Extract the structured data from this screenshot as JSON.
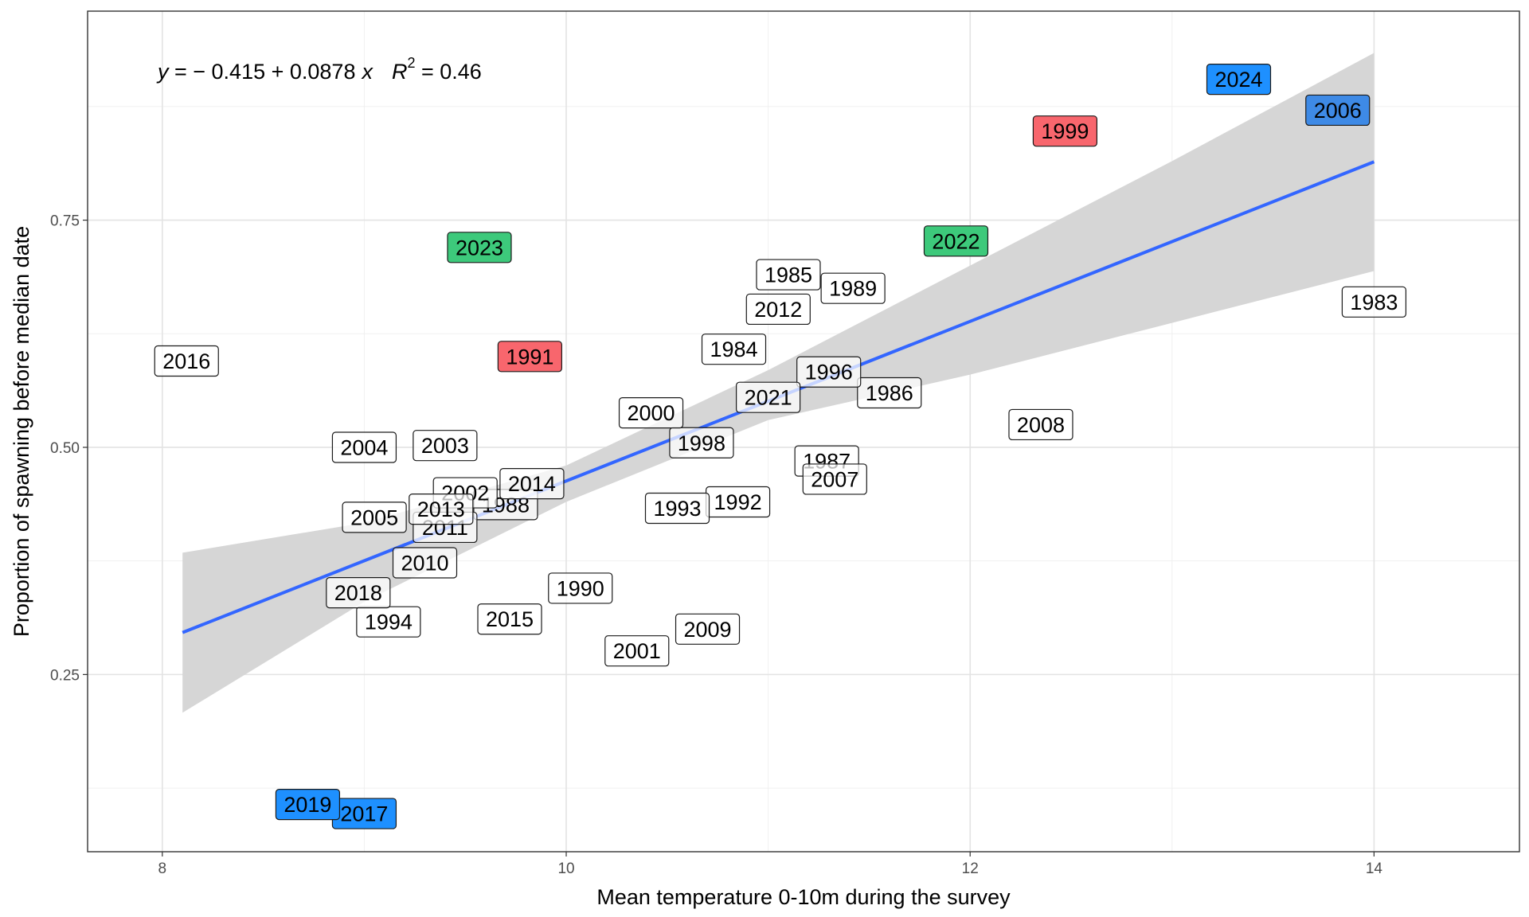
{
  "chart_data": {
    "type": "scatter",
    "xlabel": "Mean temperature 0-10m during the survey",
    "ylabel": "Proportion of spawning before median date",
    "xlim": [
      7.63,
      14.72
    ],
    "ylim": [
      0.055,
      0.98
    ],
    "x_ticks": [
      8,
      10,
      12,
      14
    ],
    "x_tick_labels": [
      "8",
      "10",
      "12",
      "14"
    ],
    "y_ticks": [
      0.25,
      0.5,
      0.75
    ],
    "y_tick_labels": [
      "0.25",
      "0.50",
      "0.75"
    ],
    "grid": true,
    "annotation": {
      "y": "y",
      "eq_main": " = − 0.415 + 0.0878",
      "x": "x",
      "r": "R",
      "sup": "2",
      "r2_value": " = 0.46"
    },
    "fit": {
      "intercept": -0.415,
      "slope": 0.0878,
      "x_range": [
        8.1,
        14.0
      ],
      "color": "#3366ff",
      "band_color": "#d6d6d6",
      "band": [
        {
          "x": 8.1,
          "lo": 0.208,
          "hi": 0.384
        },
        {
          "x": 9.0,
          "lo": 0.33,
          "hi": 0.417
        },
        {
          "x": 10.0,
          "lo": 0.44,
          "hi": 0.48
        },
        {
          "x": 11.0,
          "lo": 0.53,
          "hi": 0.585
        },
        {
          "x": 12.0,
          "lo": 0.58,
          "hi": 0.7
        },
        {
          "x": 13.0,
          "lo": 0.637,
          "hi": 0.815
        },
        {
          "x": 14.0,
          "lo": 0.694,
          "hi": 0.934
        }
      ]
    },
    "points": [
      {
        "label": "1983",
        "x": 14.0,
        "y": 0.66,
        "fill": "#ffffff"
      },
      {
        "label": "1984",
        "x": 10.83,
        "y": 0.608,
        "fill": "#ffffff"
      },
      {
        "label": "1985",
        "x": 11.1,
        "y": 0.69,
        "fill": "#ffffff"
      },
      {
        "label": "1986",
        "x": 11.6,
        "y": 0.56,
        "fill": "#ffffff"
      },
      {
        "label": "1987",
        "x": 11.29,
        "y": 0.485,
        "fill": "#ffffff"
      },
      {
        "label": "1988",
        "x": 9.7,
        "y": 0.437,
        "fill": "#ffffff"
      },
      {
        "label": "1989",
        "x": 11.42,
        "y": 0.675,
        "fill": "#ffffff"
      },
      {
        "label": "1990",
        "x": 10.07,
        "y": 0.345,
        "fill": "#ffffff"
      },
      {
        "label": "1991",
        "x": 9.82,
        "y": 0.6,
        "fill": "#f8666d"
      },
      {
        "label": "1992",
        "x": 10.85,
        "y": 0.44,
        "fill": "#ffffff"
      },
      {
        "label": "1993",
        "x": 10.55,
        "y": 0.433,
        "fill": "#ffffff"
      },
      {
        "label": "1994",
        "x": 9.12,
        "y": 0.308,
        "fill": "#ffffff"
      },
      {
        "label": "1996",
        "x": 11.3,
        "y": 0.583,
        "fill": "#ffffff"
      },
      {
        "label": "1998",
        "x": 10.67,
        "y": 0.505,
        "fill": "#ffffff"
      },
      {
        "label": "1999",
        "x": 12.47,
        "y": 0.848,
        "fill": "#f8666d"
      },
      {
        "label": "2000",
        "x": 10.42,
        "y": 0.538,
        "fill": "#ffffff"
      },
      {
        "label": "2001",
        "x": 10.35,
        "y": 0.276,
        "fill": "#ffffff"
      },
      {
        "label": "2002",
        "x": 9.5,
        "y": 0.45,
        "fill": "#ffffff"
      },
      {
        "label": "2003",
        "x": 9.4,
        "y": 0.502,
        "fill": "#ffffff"
      },
      {
        "label": "2004",
        "x": 9.0,
        "y": 0.5,
        "fill": "#ffffff"
      },
      {
        "label": "2005",
        "x": 9.05,
        "y": 0.423,
        "fill": "#ffffff"
      },
      {
        "label": "2006",
        "x": 13.82,
        "y": 0.871,
        "fill": "#3e8ae6"
      },
      {
        "label": "2007",
        "x": 11.33,
        "y": 0.465,
        "fill": "#ffffff"
      },
      {
        "label": "2008",
        "x": 12.35,
        "y": 0.525,
        "fill": "#ffffff"
      },
      {
        "label": "2009",
        "x": 10.7,
        "y": 0.3,
        "fill": "#ffffff"
      },
      {
        "label": "2010",
        "x": 9.3,
        "y": 0.373,
        "fill": "#ffffff"
      },
      {
        "label": "2011",
        "x": 9.4,
        "y": 0.412,
        "fill": "#ffffff"
      },
      {
        "label": "2012",
        "x": 11.05,
        "y": 0.652,
        "fill": "#ffffff"
      },
      {
        "label": "2013",
        "x": 9.38,
        "y": 0.432,
        "fill": "#ffffff"
      },
      {
        "label": "2014",
        "x": 9.83,
        "y": 0.46,
        "fill": "#ffffff"
      },
      {
        "label": "2015",
        "x": 9.72,
        "y": 0.311,
        "fill": "#ffffff"
      },
      {
        "label": "2016",
        "x": 8.12,
        "y": 0.595,
        "fill": "#ffffff"
      },
      {
        "label": "2017",
        "x": 9.0,
        "y": 0.097,
        "fill": "#1e90ff"
      },
      {
        "label": "2018",
        "x": 8.97,
        "y": 0.34,
        "fill": "#ffffff"
      },
      {
        "label": "2019",
        "x": 8.72,
        "y": 0.107,
        "fill": "#1e90ff"
      },
      {
        "label": "2021",
        "x": 11.0,
        "y": 0.555,
        "fill": "#ffffff"
      },
      {
        "label": "2022",
        "x": 11.93,
        "y": 0.727,
        "fill": "#3dc97b"
      },
      {
        "label": "2023",
        "x": 9.57,
        "y": 0.72,
        "fill": "#3dc97b"
      },
      {
        "label": "2024",
        "x": 13.33,
        "y": 0.905,
        "fill": "#1e90ff"
      }
    ]
  }
}
